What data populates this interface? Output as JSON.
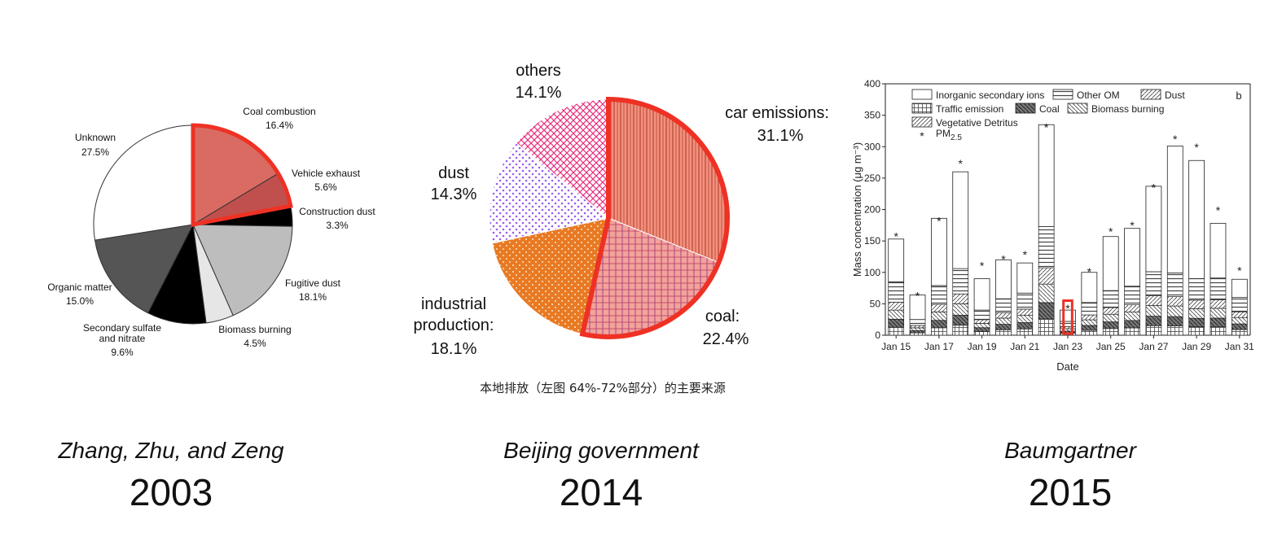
{
  "captions": [
    {
      "author": "Zhang, Zhu, and Zeng",
      "year": "2003"
    },
    {
      "author": "Beijing government",
      "year": "2014"
    },
    {
      "author": "Baumgartner",
      "year": "2015"
    }
  ],
  "colors": {
    "highlight": "#ee3124",
    "coal2003": "#d96b62",
    "vehicle2003": "#c0504d"
  },
  "chart_data": [
    {
      "type": "pie",
      "slices": [
        {
          "label": "Coal combustion",
          "value": 16.4,
          "display": "16.4%"
        },
        {
          "label": "Vehicle exhaust",
          "value": 5.6,
          "display": "5.6%"
        },
        {
          "label": "Construction dust",
          "value": 3.3,
          "display": "3.3%"
        },
        {
          "label": "Fugitive dust",
          "value": 18.1,
          "display": "18.1%"
        },
        {
          "label": "Biomass burning",
          "value": 4.5,
          "display": "4.5%"
        },
        {
          "label": "Secondary sulfate and nitrate",
          "value": 9.6,
          "display": "9.6%"
        },
        {
          "label": "Organic matter",
          "value": 15.0,
          "display": "15.0%"
        },
        {
          "label": "Unknown",
          "value": 27.5,
          "display": "27.5%"
        }
      ],
      "highlighted": [
        "Coal combustion",
        "Vehicle exhaust"
      ]
    },
    {
      "type": "pie",
      "slices": [
        {
          "label": "car emissions:",
          "value": 31.1,
          "display": "31.1%"
        },
        {
          "label": "coal:",
          "value": 22.4,
          "display": "22.4%"
        },
        {
          "label": "industrial production:",
          "value": 18.1,
          "display": "18.1%"
        },
        {
          "label": "dust",
          "value": 14.3,
          "display": "14.3%"
        },
        {
          "label": "others",
          "value": 14.1,
          "display": "14.1%"
        }
      ],
      "highlighted": [
        "car emissions:",
        "coal:"
      ],
      "note": "本地排放（左图 64%-72%部分）的主要来源"
    },
    {
      "type": "bar",
      "panel_letter": "b",
      "xlabel": "Date",
      "ylabel": "Mass concentration (μg m⁻³)",
      "ylim": [
        0,
        400
      ],
      "yticks": [
        0,
        50,
        100,
        150,
        200,
        250,
        300,
        350,
        400
      ],
      "xtick_labels": [
        "Jan 15",
        "Jan 17",
        "Jan 19",
        "Jan 21",
        "Jan 23",
        "Jan 25",
        "Jan 27",
        "Jan 29",
        "Jan 31"
      ],
      "legend": [
        "Inorganic secondary ions",
        "Other OM",
        "Dust",
        "Traffic emission",
        "Coal",
        "Biomass burning",
        "Vegetative Detritus",
        "PM2.5"
      ],
      "days": [
        15,
        16,
        17,
        18,
        19,
        20,
        21,
        22,
        23,
        24,
        25,
        26,
        27,
        28,
        29,
        30,
        31
      ],
      "totals": [
        153,
        64,
        186,
        260,
        90,
        120,
        115,
        335,
        40,
        100,
        157,
        170,
        237,
        301,
        278,
        178,
        89
      ],
      "pm25": [
        157,
        63,
        182,
        273,
        111,
        121,
        128,
        331,
        43,
        101,
        165,
        175,
        235,
        312,
        299,
        199,
        103
      ],
      "inorganic_top_base": [
        85,
        25,
        79,
        106,
        40,
        58,
        67,
        173,
        22,
        52,
        71,
        78,
        101,
        99,
        90,
        91,
        60
      ],
      "highlighted_day": 23
    }
  ]
}
